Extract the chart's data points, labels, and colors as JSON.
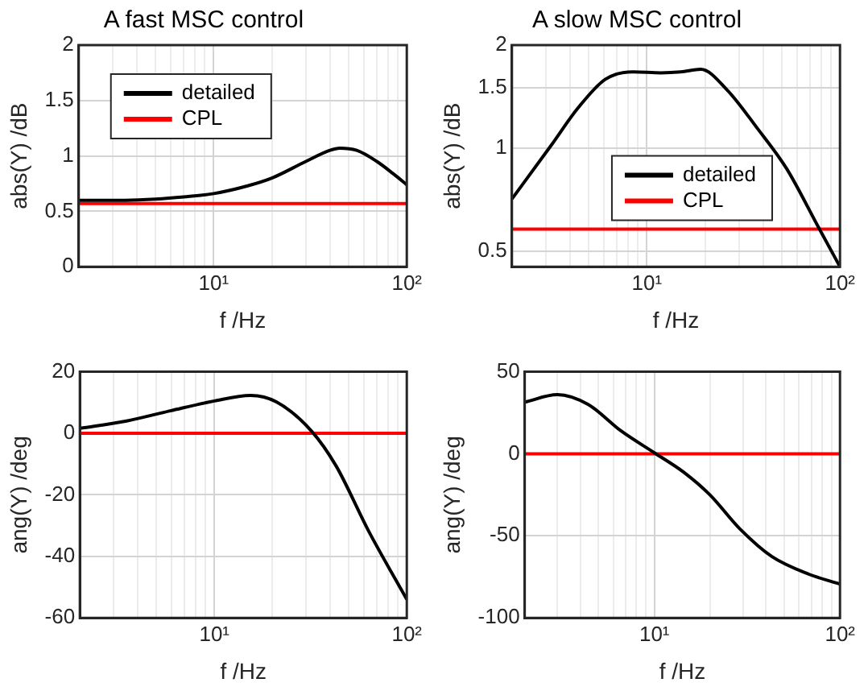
{
  "chart_data": [
    {
      "type": "line",
      "title": "A fast MSC control",
      "xlabel": "f /Hz",
      "ylabel": "abs(Y) /dB",
      "log": "x",
      "grid": true,
      "legend": "top left",
      "xlim": [
        2,
        100
      ],
      "ylim": [
        0,
        2
      ],
      "yticks": [
        0,
        0.5,
        1,
        1.5,
        2
      ],
      "xticks": [
        {
          "value": 3,
          "label": null
        },
        {
          "value": 4,
          "label": null
        },
        {
          "value": 5,
          "label": null
        },
        {
          "value": 6,
          "label": null
        },
        {
          "value": 7,
          "label": null
        },
        {
          "value": 8,
          "label": null
        },
        {
          "value": 9,
          "label": null
        },
        {
          "value": 10,
          "label": "10¹"
        },
        {
          "value": 20,
          "label": null
        },
        {
          "value": 30,
          "label": null
        },
        {
          "value": 40,
          "label": null
        },
        {
          "value": 50,
          "label": null
        },
        {
          "value": 60,
          "label": null
        },
        {
          "value": 70,
          "label": null
        },
        {
          "value": 80,
          "label": null
        },
        {
          "value": 90,
          "label": null
        },
        {
          "value": 100,
          "label": "10²"
        }
      ],
      "series": [
        {
          "name": "detailed",
          "color": "#000000",
          "x": [
            2,
            3.5,
            5,
            7,
            10,
            15,
            20,
            30,
            40,
            45,
            55,
            70,
            85,
            100
          ],
          "values": [
            0.6,
            0.6,
            0.61,
            0.63,
            0.66,
            0.73,
            0.8,
            0.95,
            1.05,
            1.07,
            1.05,
            0.95,
            0.84,
            0.74
          ]
        },
        {
          "name": "CPL",
          "color": "#ff0000",
          "x": [
            2,
            100
          ],
          "values": [
            0.57,
            0.57
          ]
        }
      ]
    },
    {
      "type": "line",
      "title": "A slow MSC control",
      "xlabel": "f /Hz",
      "ylabel": "abs(Y) /dB",
      "log": "xy",
      "grid": true,
      "legend": "center",
      "xlim": [
        2,
        100
      ],
      "ylim": [
        0.45,
        2
      ],
      "yticks": [
        0.5,
        1,
        1.5,
        2
      ],
      "xticks": [
        {
          "value": 3,
          "label": null
        },
        {
          "value": 4,
          "label": null
        },
        {
          "value": 5,
          "label": null
        },
        {
          "value": 6,
          "label": null
        },
        {
          "value": 7,
          "label": null
        },
        {
          "value": 8,
          "label": null
        },
        {
          "value": 9,
          "label": null
        },
        {
          "value": 10,
          "label": "10¹"
        },
        {
          "value": 20,
          "label": null
        },
        {
          "value": 30,
          "label": null
        },
        {
          "value": 40,
          "label": null
        },
        {
          "value": 50,
          "label": null
        },
        {
          "value": 60,
          "label": null
        },
        {
          "value": 70,
          "label": null
        },
        {
          "value": 80,
          "label": null
        },
        {
          "value": 90,
          "label": null
        },
        {
          "value": 100,
          "label": "10²"
        }
      ],
      "series": [
        {
          "name": "detailed",
          "color": "#000000",
          "x": [
            2,
            3.2,
            4.4,
            6.1,
            8.5,
            11.8,
            15,
            19,
            26,
            37,
            53,
            77,
            100
          ],
          "values": [
            0.71,
            1.02,
            1.31,
            1.59,
            1.67,
            1.66,
            1.67,
            1.7,
            1.48,
            1.15,
            0.87,
            0.59,
            0.45
          ]
        },
        {
          "name": "CPL",
          "color": "#ff0000",
          "x": [
            2,
            100
          ],
          "values": [
            0.58,
            0.58
          ]
        }
      ]
    },
    {
      "type": "line",
      "xlabel": "f /Hz",
      "ylabel": "ang(Y) /deg",
      "log": "x",
      "grid": true,
      "xlim": [
        2,
        100
      ],
      "ylim": [
        -60,
        20
      ],
      "yticks": [
        -60,
        -40,
        -20,
        0,
        20
      ],
      "xticks": [
        {
          "value": 3,
          "label": null
        },
        {
          "value": 4,
          "label": null
        },
        {
          "value": 5,
          "label": null
        },
        {
          "value": 6,
          "label": null
        },
        {
          "value": 7,
          "label": null
        },
        {
          "value": 8,
          "label": null
        },
        {
          "value": 9,
          "label": null
        },
        {
          "value": 10,
          "label": "10¹"
        },
        {
          "value": 20,
          "label": null
        },
        {
          "value": 30,
          "label": null
        },
        {
          "value": 40,
          "label": null
        },
        {
          "value": 50,
          "label": null
        },
        {
          "value": 60,
          "label": null
        },
        {
          "value": 70,
          "label": null
        },
        {
          "value": 80,
          "label": null
        },
        {
          "value": 90,
          "label": null
        },
        {
          "value": 100,
          "label": "10²"
        }
      ],
      "series": [
        {
          "color": "#000000",
          "x": [
            2,
            3.5,
            5.9,
            10,
            15.4,
            21,
            32,
            43,
            63,
            100
          ],
          "values": [
            1.6,
            4,
            7.3,
            10.5,
            12.3,
            10.2,
            0.7,
            -10.7,
            -31.5,
            -54
          ]
        },
        {
          "color": "#ff0000",
          "x": [
            2,
            100
          ],
          "values": [
            0,
            0
          ]
        }
      ]
    },
    {
      "type": "line",
      "xlabel": "f /Hz",
      "ylabel": "ang(Y) /deg",
      "log": "x",
      "grid": true,
      "xlim": [
        2,
        100
      ],
      "ylim": [
        -100,
        50
      ],
      "yticks": [
        -100,
        -50,
        0,
        50
      ],
      "xticks": [
        {
          "value": 3,
          "label": null
        },
        {
          "value": 4,
          "label": null
        },
        {
          "value": 5,
          "label": null
        },
        {
          "value": 6,
          "label": null
        },
        {
          "value": 7,
          "label": null
        },
        {
          "value": 8,
          "label": null
        },
        {
          "value": 9,
          "label": null
        },
        {
          "value": 10,
          "label": "10¹"
        },
        {
          "value": 20,
          "label": null
        },
        {
          "value": 30,
          "label": null
        },
        {
          "value": 40,
          "label": null
        },
        {
          "value": 50,
          "label": null
        },
        {
          "value": 60,
          "label": null
        },
        {
          "value": 70,
          "label": null
        },
        {
          "value": 80,
          "label": null
        },
        {
          "value": 90,
          "label": null
        },
        {
          "value": 100,
          "label": "10²"
        }
      ],
      "series": [
        {
          "color": "#000000",
          "x": [
            2,
            3,
            4.4,
            6.6,
            10,
            14.3,
            19.9,
            29,
            43,
            68,
            100
          ],
          "values": [
            31.5,
            36,
            30,
            14,
            0.6,
            -11,
            -25,
            -46,
            -62.7,
            -73.4,
            -79.4
          ]
        },
        {
          "color": "#ff0000",
          "x": [
            2,
            100
          ],
          "values": [
            0,
            0
          ]
        }
      ]
    }
  ]
}
